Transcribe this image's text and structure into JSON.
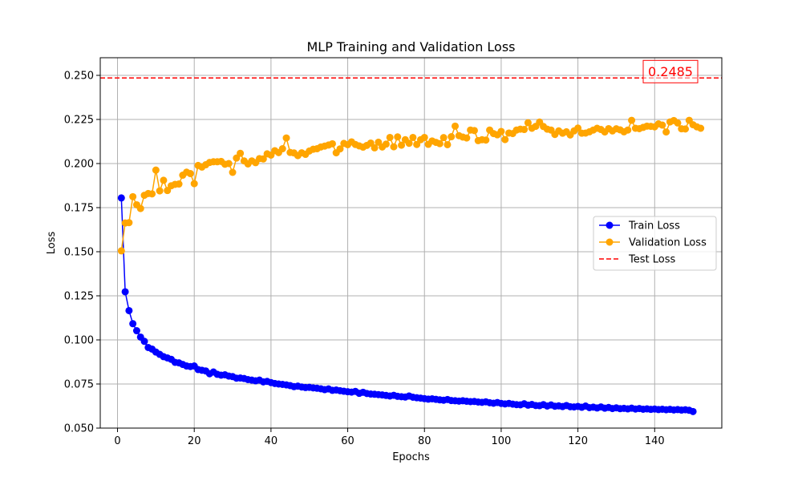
{
  "chart_data": {
    "type": "line",
    "title": "MLP Training and Validation Loss",
    "xlabel": "Epochs",
    "ylabel": "Loss",
    "xlim": [
      -4.5,
      157.5
    ],
    "ylim": [
      0.05,
      0.26
    ],
    "xticks": [
      0,
      20,
      40,
      60,
      80,
      100,
      120,
      140
    ],
    "yticks": [
      0.05,
      0.075,
      0.1,
      0.125,
      0.15,
      0.175,
      0.2,
      0.225,
      0.25
    ],
    "ytick_labels": [
      "0.050",
      "0.075",
      "0.100",
      "0.125",
      "0.150",
      "0.175",
      "0.200",
      "0.225",
      "0.250"
    ],
    "grid": true,
    "legend_position": "center-right",
    "series": [
      {
        "name": "Train Loss",
        "color": "#0000ff",
        "marker": "circle",
        "x_start": 1,
        "values": [
          0.1805,
          0.1273,
          0.1166,
          0.1092,
          0.1052,
          0.1016,
          0.0992,
          0.0957,
          0.0948,
          0.0931,
          0.0918,
          0.0905,
          0.0898,
          0.089,
          0.0873,
          0.087,
          0.0861,
          0.0852,
          0.0849,
          0.0852,
          0.0832,
          0.0828,
          0.0824,
          0.0808,
          0.0818,
          0.0805,
          0.08,
          0.0802,
          0.0795,
          0.0792,
          0.0783,
          0.0784,
          0.0781,
          0.0775,
          0.0772,
          0.0768,
          0.0772,
          0.0762,
          0.0765,
          0.0758,
          0.0753,
          0.075,
          0.0748,
          0.0745,
          0.0741,
          0.0735,
          0.0738,
          0.0733,
          0.073,
          0.0731,
          0.0728,
          0.0726,
          0.0723,
          0.0718,
          0.0722,
          0.0714,
          0.0716,
          0.0712,
          0.0709,
          0.0706,
          0.0704,
          0.0708,
          0.0697,
          0.0703,
          0.0696,
          0.0693,
          0.0692,
          0.069,
          0.0688,
          0.0685,
          0.0682,
          0.0686,
          0.068,
          0.0678,
          0.0676,
          0.0682,
          0.0675,
          0.0672,
          0.067,
          0.0667,
          0.0664,
          0.0666,
          0.0663,
          0.066,
          0.0658,
          0.0662,
          0.0656,
          0.0655,
          0.0653,
          0.0655,
          0.0652,
          0.065,
          0.0651,
          0.0648,
          0.0646,
          0.0649,
          0.0644,
          0.0641,
          0.0645,
          0.064,
          0.0637,
          0.064,
          0.0636,
          0.0633,
          0.0632,
          0.0638,
          0.063,
          0.0634,
          0.0628,
          0.0627,
          0.0633,
          0.0625,
          0.0631,
          0.0624,
          0.0626,
          0.0622,
          0.0628,
          0.0621,
          0.062,
          0.0623,
          0.0618,
          0.0625,
          0.0616,
          0.0619,
          0.0614,
          0.062,
          0.0613,
          0.0617,
          0.0611,
          0.0615,
          0.061,
          0.0612,
          0.0609,
          0.0613,
          0.0608,
          0.0611,
          0.0607,
          0.0609,
          0.0606,
          0.0608,
          0.0605,
          0.0607,
          0.0604,
          0.0606,
          0.0603,
          0.0605,
          0.0602,
          0.0604,
          0.0601,
          0.0594
        ]
      },
      {
        "name": "Validation Loss",
        "color": "#ffa500",
        "marker": "circle",
        "x_start": 1,
        "values": [
          0.1505,
          0.1663,
          0.1665,
          0.1812,
          0.1766,
          0.1745,
          0.182,
          0.183,
          0.1828,
          0.1963,
          0.1845,
          0.1905,
          0.1847,
          0.1874,
          0.1882,
          0.1884,
          0.1934,
          0.1951,
          0.1943,
          0.1886,
          0.1989,
          0.198,
          0.1993,
          0.2006,
          0.201,
          0.201,
          0.2012,
          0.1996,
          0.2,
          0.195,
          0.2031,
          0.2058,
          0.2015,
          0.1998,
          0.2015,
          0.2005,
          0.2028,
          0.2026,
          0.2055,
          0.2048,
          0.2073,
          0.2062,
          0.2084,
          0.2145,
          0.2063,
          0.206,
          0.2045,
          0.2061,
          0.2052,
          0.2071,
          0.2081,
          0.2084,
          0.2094,
          0.2099,
          0.2105,
          0.2112,
          0.2061,
          0.2083,
          0.2114,
          0.2107,
          0.2123,
          0.2108,
          0.21,
          0.2093,
          0.2103,
          0.2116,
          0.2089,
          0.2121,
          0.2094,
          0.211,
          0.2148,
          0.2095,
          0.2151,
          0.2104,
          0.2135,
          0.2115,
          0.2148,
          0.2108,
          0.2135,
          0.2148,
          0.2109,
          0.2128,
          0.212,
          0.2113,
          0.2147,
          0.2107,
          0.2152,
          0.2212,
          0.2158,
          0.215,
          0.2145,
          0.219,
          0.2187,
          0.213,
          0.2135,
          0.2133,
          0.219,
          0.217,
          0.2163,
          0.2182,
          0.2136,
          0.2173,
          0.217,
          0.219,
          0.2195,
          0.2193,
          0.2231,
          0.22,
          0.2211,
          0.2235,
          0.221,
          0.2195,
          0.219,
          0.2165,
          0.2185,
          0.2172,
          0.218,
          0.2162,
          0.2185,
          0.2201,
          0.2172,
          0.2173,
          0.218,
          0.219,
          0.22,
          0.2193,
          0.2179,
          0.2198,
          0.2185,
          0.2197,
          0.2191,
          0.218,
          0.219,
          0.2245,
          0.22,
          0.2198,
          0.2205,
          0.2212,
          0.2211,
          0.2208,
          0.2225,
          0.2218,
          0.2179,
          0.2236,
          0.2244,
          0.223,
          0.2197,
          0.2196,
          0.2245,
          0.222,
          0.2208,
          0.22
        ]
      }
    ],
    "reference_lines": [
      {
        "name": "Test Loss",
        "orientation": "horizontal",
        "y": 0.2485,
        "color": "#ff0000",
        "style": "dashed"
      }
    ],
    "annotations": [
      {
        "text": "0.2485",
        "color": "#ff0000",
        "anchor": "upper-right, on test loss line"
      }
    ],
    "legend": [
      {
        "label": "Train Loss",
        "color": "#0000ff",
        "kind": "line-marker"
      },
      {
        "label": "Validation Loss",
        "color": "#ffa500",
        "kind": "line-marker"
      },
      {
        "label": "Test Loss",
        "color": "#ff0000",
        "kind": "dashed-line"
      }
    ]
  }
}
